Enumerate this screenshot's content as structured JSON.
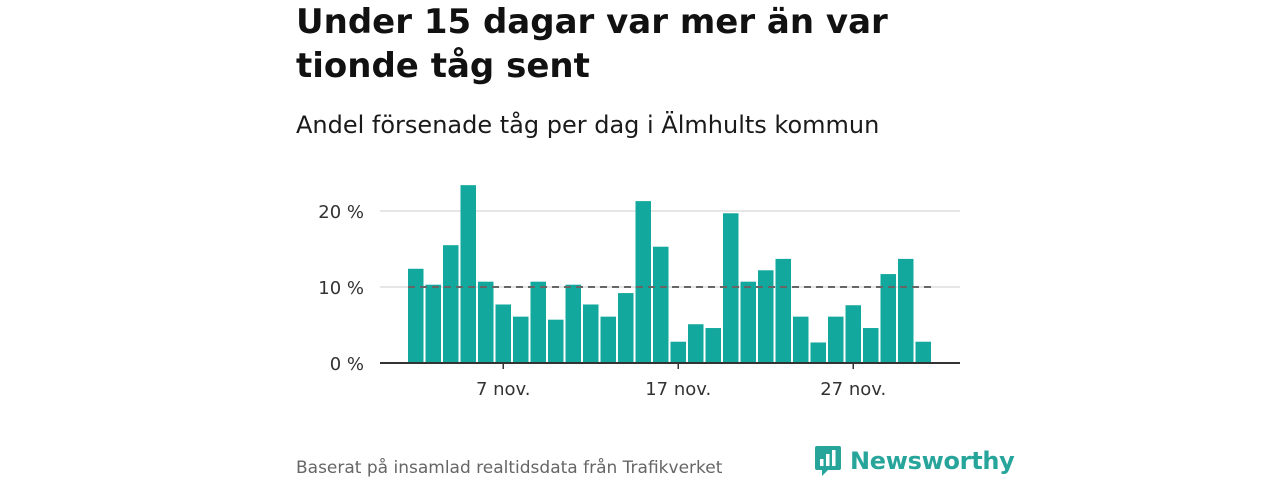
{
  "header": {
    "title": "Under 15 dagar var mer än var tionde tåg sent",
    "subtitle": "Andel försenade tåg per dag i Älmhults kommun"
  },
  "footer": {
    "source": "Baserat på insamlad realtidsdata från Trafikverket",
    "brand": "Newsworthy"
  },
  "colors": {
    "bar": "#12a89d",
    "reference_line": "#666666",
    "grid": "#dddddd",
    "axis": "#333333",
    "brand": "#27a59b"
  },
  "icons": {
    "brand_logo": "chart-bubble-icon"
  },
  "chart_data": {
    "type": "bar",
    "title": "",
    "xlabel": "",
    "ylabel": "",
    "ylim": [
      0,
      25
    ],
    "y_ticks": [
      0,
      10,
      20
    ],
    "y_tick_labels": [
      "0 %",
      "10 %",
      "20 %"
    ],
    "x_tick_labels": [
      "7 nov.",
      "17 nov.",
      "27 nov."
    ],
    "x_tick_days": [
      7,
      17,
      27
    ],
    "categories": [
      "2 nov.",
      "3 nov.",
      "4 nov.",
      "5 nov.",
      "6 nov.",
      "7 nov.",
      "8 nov.",
      "9 nov.",
      "10 nov.",
      "11 nov.",
      "12 nov.",
      "13 nov.",
      "14 nov.",
      "15 nov.",
      "16 nov.",
      "17 nov.",
      "18 nov.",
      "19 nov.",
      "20 nov.",
      "21 nov.",
      "22 nov.",
      "23 nov.",
      "24 nov.",
      "25 nov.",
      "26 nov.",
      "27 nov.",
      "28 nov.",
      "29 nov.",
      "30 nov.",
      "1 dec."
    ],
    "values": [
      12.4,
      10.3,
      15.5,
      23.4,
      10.7,
      7.7,
      6.1,
      10.7,
      5.7,
      10.3,
      7.7,
      6.1,
      9.2,
      21.3,
      15.3,
      2.8,
      5.1,
      4.6,
      19.7,
      10.7,
      12.2,
      13.7,
      6.1,
      2.7,
      6.1,
      7.6,
      4.6,
      11.7,
      13.7,
      2.8
    ],
    "reference_line": 10,
    "grid": true,
    "legend": "none"
  }
}
